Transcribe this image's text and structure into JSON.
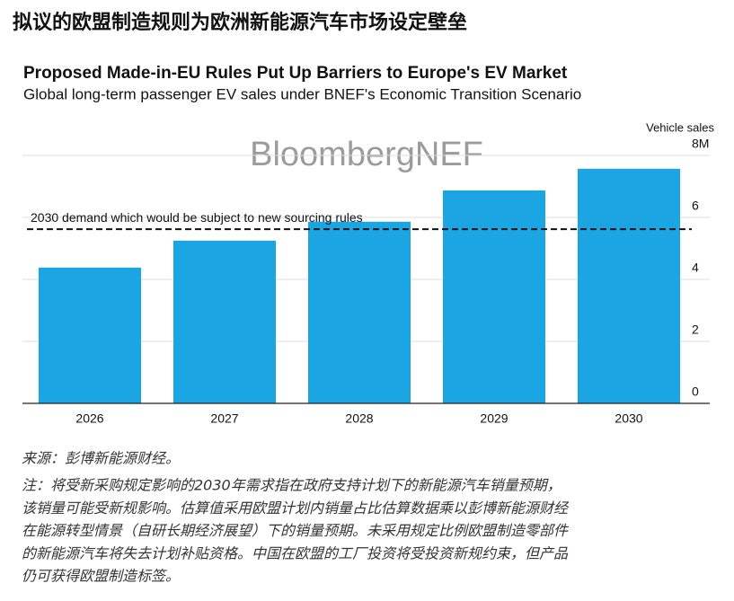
{
  "headline": "拟议的欧盟制造规则为欧洲新能源汽车市场设定壁垒",
  "chart_data": {
    "type": "bar",
    "title": "Proposed Made-in-EU Rules Put Up Barriers to Europe's EV Market",
    "subtitle": "Global long-term passenger EV sales under BNEF's Economic Transition Scenario",
    "watermark": "BloombergNEF",
    "y_label": "Vehicle sales",
    "categories": [
      "2026",
      "2027",
      "2028",
      "2029",
      "2030"
    ],
    "values": [
      4.38,
      5.25,
      5.86,
      6.87,
      7.57
    ],
    "color": "#1ba6e3",
    "ylim": [
      0,
      8
    ],
    "yticks": [
      0,
      2,
      4,
      6,
      {
        "value": 8,
        "label": "8M"
      }
    ],
    "grid": true,
    "reference_line": {
      "value": 5.62,
      "label": "2030 demand which would be subject to new sourcing rules"
    }
  },
  "notes": {
    "source": "来源：彭博新能源财经。",
    "note": [
      "注：将受新采购规定影响的2030年需求指在政府支持计划下的新能源汽车销量预期，",
      "该销量可能受新规影响。估算值采用欧盟计划内销量占比估算数据乘以彭博新能源财经",
      "在能源转型情景（自研长期经济展望）下的销量预期。未采用规定比例欧盟制造零部件",
      "的新能源汽车将失去计划补贴资格。中国在欧盟的工厂投资将受投资新规约束，但产品",
      "仍可获得欧盟制造标签。"
    ]
  }
}
